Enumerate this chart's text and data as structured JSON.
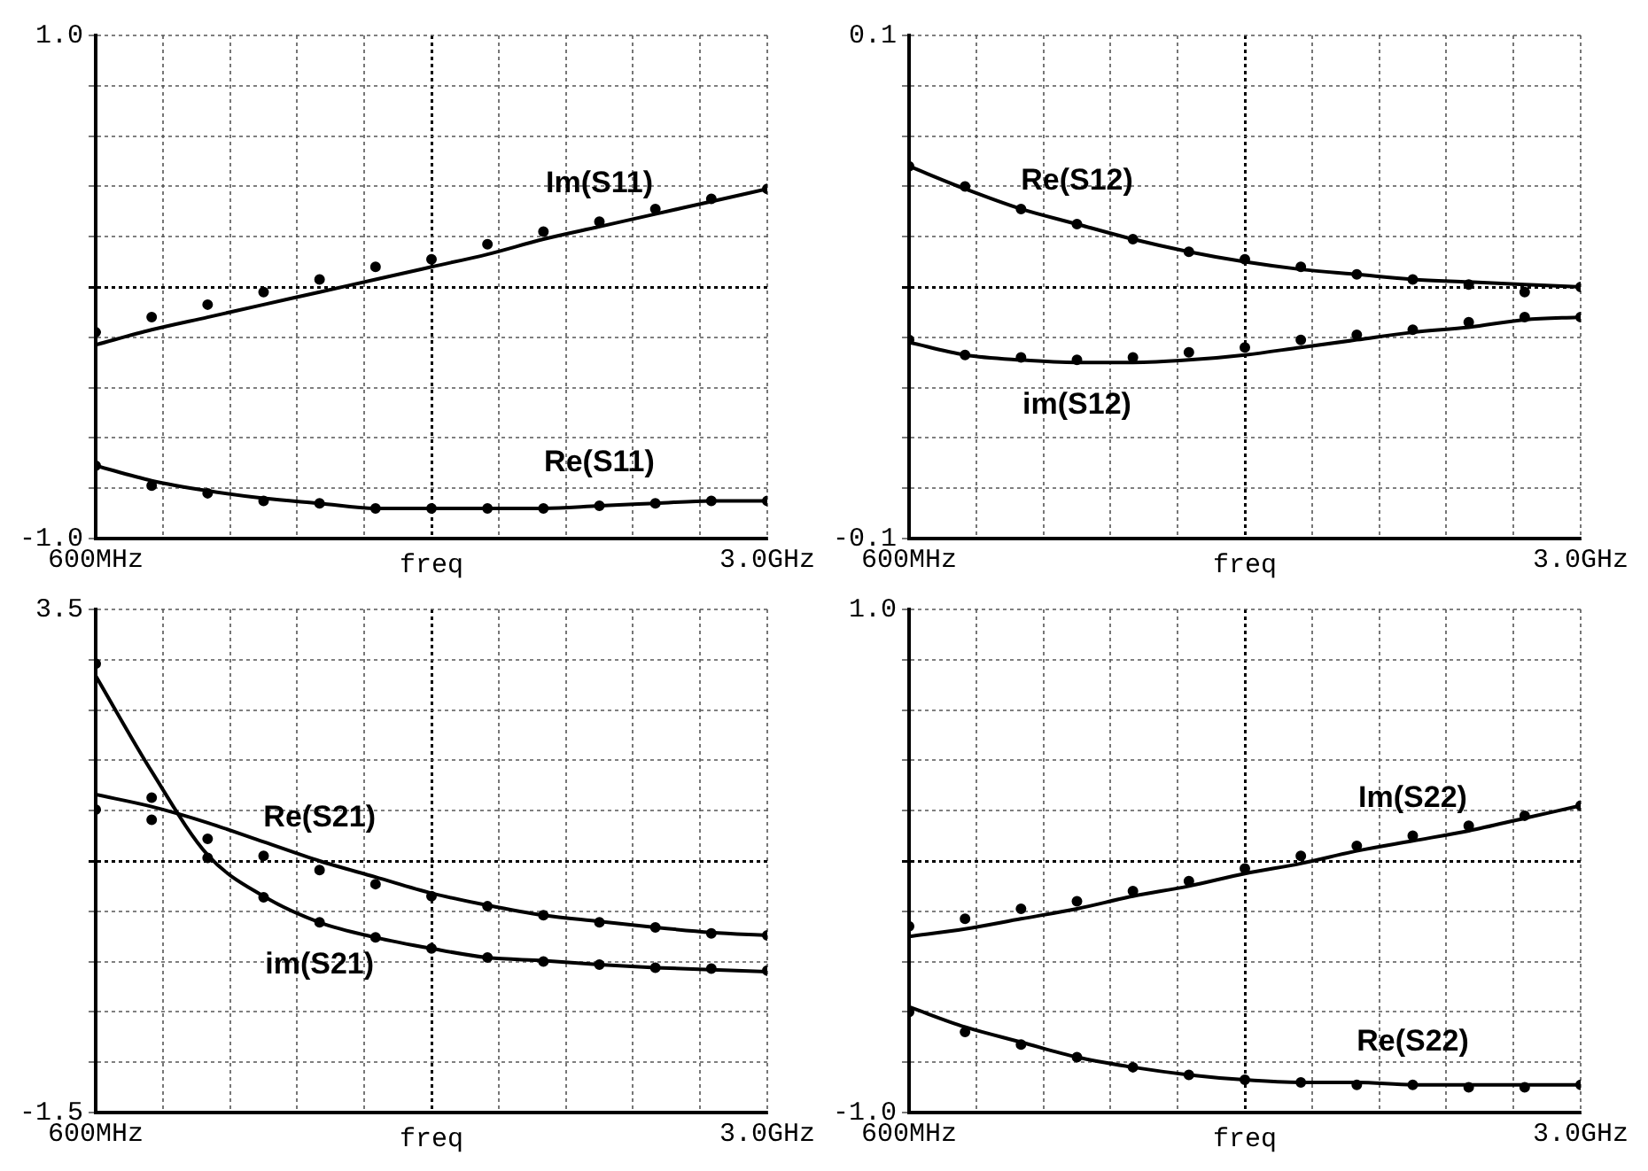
{
  "chart_data": [
    {
      "type": "line",
      "xlabel": "freq",
      "categories": [
        "600MHz",
        null,
        null,
        null,
        null,
        null,
        null,
        null,
        null,
        null,
        null,
        null,
        "3.0GHz"
      ],
      "ylim": [
        -1,
        1
      ],
      "grid": true,
      "yticks": [
        {
          "value": -1,
          "label": "-1.0"
        },
        {
          "value": -0.8,
          "label": null
        },
        {
          "value": -0.6,
          "label": null
        },
        {
          "value": -0.4,
          "label": null
        },
        {
          "value": -0.2,
          "label": null
        },
        {
          "value": 0,
          "label": null
        },
        {
          "value": 0.2,
          "label": null
        },
        {
          "value": 0.4,
          "label": null
        },
        {
          "value": 0.6,
          "label": null
        },
        {
          "value": 0.8,
          "label": null
        },
        {
          "value": 1,
          "label": "1.0"
        }
      ],
      "series": [
        {
          "name": "Im(S11)",
          "type": "line",
          "marker": "none",
          "color": "#000000",
          "values": [
            -0.23,
            -0.17,
            -0.12,
            -0.07,
            -0.02,
            0.03,
            0.08,
            0.13,
            0.19,
            0.24,
            0.29,
            0.34,
            0.39
          ]
        },
        {
          "type": "scatter",
          "marker": "circle",
          "color": "#000000",
          "values": [
            -0.18,
            -0.12,
            -0.07,
            -0.02,
            0.03,
            0.08,
            0.11,
            0.17,
            0.22,
            0.26,
            0.31,
            0.35,
            0.39
          ]
        },
        {
          "name": "Re(S11)",
          "type": "line",
          "marker": "none",
          "color": "#000000",
          "values": [
            -0.71,
            -0.77,
            -0.81,
            -0.84,
            -0.86,
            -0.88,
            -0.88,
            -0.88,
            -0.88,
            -0.87,
            -0.86,
            -0.85,
            -0.85
          ]
        },
        {
          "type": "scatter",
          "marker": "circle",
          "color": "#000000",
          "values": [
            -0.71,
            -0.79,
            -0.82,
            -0.85,
            -0.86,
            -0.88,
            -0.88,
            -0.88,
            -0.88,
            -0.87,
            -0.86,
            -0.85,
            -0.85
          ]
        }
      ]
    },
    {
      "type": "line",
      "xlabel": "freq",
      "categories": [
        "600MHz",
        null,
        null,
        null,
        null,
        null,
        null,
        null,
        null,
        null,
        null,
        null,
        "3.0GHz"
      ],
      "ylim": [
        -0.1,
        0.1
      ],
      "grid": true,
      "yticks": [
        {
          "value": -0.1,
          "label": "-0.1"
        },
        {
          "value": -0.08,
          "label": null
        },
        {
          "value": -0.06,
          "label": null
        },
        {
          "value": -0.04,
          "label": null
        },
        {
          "value": -0.02,
          "label": null
        },
        {
          "value": 0,
          "label": null
        },
        {
          "value": 0.02,
          "label": null
        },
        {
          "value": 0.04,
          "label": null
        },
        {
          "value": 0.06,
          "label": null
        },
        {
          "value": 0.08,
          "label": null
        },
        {
          "value": 0.1,
          "label": "0.1"
        }
      ],
      "series": [
        {
          "name": "Re(S12)",
          "type": "line",
          "marker": "none",
          "color": "#000000",
          "values": [
            0.048,
            0.039,
            0.031,
            0.025,
            0.019,
            0.014,
            0.01,
            0.007,
            0.005,
            0.003,
            0.002,
            0.001,
            0
          ]
        },
        {
          "type": "scatter",
          "marker": "circle",
          "color": "#000000",
          "values": [
            0.048,
            0.04,
            0.031,
            0.025,
            0.019,
            0.014,
            0.011,
            0.008,
            0.005,
            0.003,
            0.001,
            -0.002,
            0
          ]
        },
        {
          "name": "im(S12)",
          "type": "line",
          "marker": "none",
          "color": "#000000",
          "values": [
            -0.022,
            -0.027,
            -0.029,
            -0.03,
            -0.03,
            -0.029,
            -0.027,
            -0.024,
            -0.021,
            -0.018,
            -0.016,
            -0.013,
            -0.012
          ]
        },
        {
          "type": "scatter",
          "marker": "circle",
          "color": "#000000",
          "values": [
            -0.021,
            -0.027,
            -0.028,
            -0.029,
            -0.028,
            -0.026,
            -0.024,
            -0.021,
            -0.019,
            -0.017,
            -0.014,
            -0.012,
            -0.012
          ]
        }
      ]
    },
    {
      "type": "line",
      "xlabel": "freq",
      "categories": [
        "600MHz",
        null,
        null,
        null,
        null,
        null,
        null,
        null,
        null,
        null,
        null,
        null,
        "3.0GHz"
      ],
      "ylim": [
        -1.5,
        3.5
      ],
      "grid": true,
      "yticks": [
        {
          "value": -1.5,
          "label": "-1.5"
        },
        {
          "value": -1,
          "label": null
        },
        {
          "value": -0.5,
          "label": null
        },
        {
          "value": 0,
          "label": null
        },
        {
          "value": 0.5,
          "label": null
        },
        {
          "value": 1,
          "label": null
        },
        {
          "value": 1.5,
          "label": null
        },
        {
          "value": 2,
          "label": null
        },
        {
          "value": 2.5,
          "label": null
        },
        {
          "value": 3,
          "label": null
        },
        {
          "value": 3.5,
          "label": "3.5"
        }
      ],
      "series": [
        {
          "name": "im(S21)",
          "type": "line",
          "marker": "none",
          "color": "#000000",
          "values": [
            2.84,
            1.89,
            1.06,
            0.65,
            0.39,
            0.24,
            0.13,
            0.04,
            0.01,
            -0.03,
            -0.06,
            -0.08,
            -0.1
          ]
        },
        {
          "type": "scatter",
          "marker": "circle",
          "color": "#000000",
          "values": [
            2.96,
            1.63,
            1.03,
            0.64,
            0.39,
            0.24,
            0.13,
            0.04,
            0.0,
            -0.03,
            -0.06,
            -0.07,
            -0.09
          ]
        },
        {
          "name": "Re(S21)",
          "type": "line",
          "marker": "none",
          "color": "#000000",
          "values": [
            1.66,
            1.54,
            1.38,
            1.19,
            1.0,
            0.84,
            0.68,
            0.56,
            0.46,
            0.4,
            0.34,
            0.29,
            0.26
          ]
        },
        {
          "type": "scatter",
          "marker": "circle",
          "color": "#000000",
          "values": [
            1.51,
            1.41,
            1.22,
            1.05,
            0.91,
            0.77,
            0.65,
            0.55,
            0.46,
            0.39,
            0.34,
            0.28,
            0.26
          ]
        }
      ]
    },
    {
      "type": "line",
      "xlabel": "freq",
      "categories": [
        "600MHz",
        null,
        null,
        null,
        null,
        null,
        null,
        null,
        null,
        null,
        null,
        null,
        "3.0GHz"
      ],
      "ylim": [
        -1,
        1
      ],
      "grid": true,
      "yticks": [
        {
          "value": -1,
          "label": "-1.0"
        },
        {
          "value": -0.8,
          "label": null
        },
        {
          "value": -0.6,
          "label": null
        },
        {
          "value": -0.4,
          "label": null
        },
        {
          "value": -0.2,
          "label": null
        },
        {
          "value": 0,
          "label": null
        },
        {
          "value": 0.2,
          "label": null
        },
        {
          "value": 0.4,
          "label": null
        },
        {
          "value": 0.6,
          "label": null
        },
        {
          "value": 0.8,
          "label": null
        },
        {
          "value": 1,
          "label": "1.0"
        }
      ],
      "series": [
        {
          "name": "Im(S22)",
          "type": "line",
          "marker": "none",
          "color": "#000000",
          "values": [
            -0.3,
            -0.27,
            -0.23,
            -0.19,
            -0.14,
            -0.1,
            -0.05,
            -0.01,
            0.04,
            0.08,
            0.12,
            0.17,
            0.22
          ]
        },
        {
          "type": "scatter",
          "marker": "circle",
          "color": "#000000",
          "values": [
            -0.26,
            -0.23,
            -0.19,
            -0.16,
            -0.12,
            -0.08,
            -0.03,
            0.02,
            0.06,
            0.1,
            0.14,
            0.18,
            0.22
          ]
        },
        {
          "name": "Re(S22)",
          "type": "line",
          "marker": "none",
          "color": "#000000",
          "values": [
            -0.58,
            -0.66,
            -0.72,
            -0.78,
            -0.82,
            -0.85,
            -0.87,
            -0.88,
            -0.88,
            -0.89,
            -0.89,
            -0.89,
            -0.89
          ]
        },
        {
          "type": "scatter",
          "marker": "circle",
          "color": "#000000",
          "values": [
            -0.6,
            -0.68,
            -0.73,
            -0.78,
            -0.82,
            -0.85,
            -0.87,
            -0.88,
            -0.89,
            -0.89,
            -0.9,
            -0.9,
            -0.89
          ]
        }
      ]
    }
  ]
}
